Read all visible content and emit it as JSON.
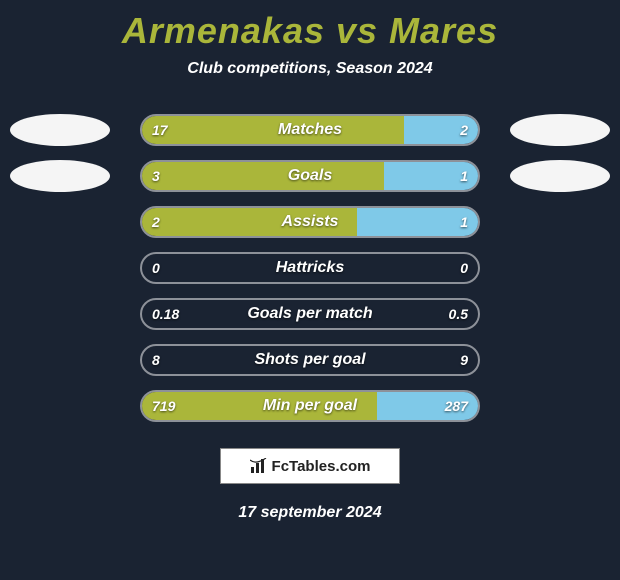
{
  "background_color": "#1a2332",
  "title": "Armenakas vs Mares",
  "title_color": "#aab63a",
  "title_fontsize": 36,
  "subtitle": "Club competitions, Season 2024",
  "subtitle_fontsize": 16,
  "bar": {
    "track_border_color": "rgba(255,255,255,0.5)",
    "left_color": "#aab63a",
    "right_color": "#7fc9e8",
    "label_fontsize": 16
  },
  "avatar": {
    "bg": "#f5f5f5",
    "show_rows": [
      0,
      1
    ]
  },
  "rows": [
    {
      "label": "Matches",
      "left": "17",
      "right": "2",
      "left_pct": 78,
      "right_pct": 22
    },
    {
      "label": "Goals",
      "left": "3",
      "right": "1",
      "left_pct": 72,
      "right_pct": 28
    },
    {
      "label": "Assists",
      "left": "2",
      "right": "1",
      "left_pct": 64,
      "right_pct": 36
    },
    {
      "label": "Hattricks",
      "left": "0",
      "right": "0",
      "left_pct": 0,
      "right_pct": 0
    },
    {
      "label": "Goals per match",
      "left": "0.18",
      "right": "0.5",
      "left_pct": 0,
      "right_pct": 0
    },
    {
      "label": "Shots per goal",
      "left": "8",
      "right": "9",
      "left_pct": 0,
      "right_pct": 0
    },
    {
      "label": "Min per goal",
      "left": "719",
      "right": "287",
      "left_pct": 70,
      "right_pct": 30
    }
  ],
  "footer": {
    "brand": "FcTables.com",
    "icon_name": "bar-chart-icon"
  },
  "date": "17 september 2024"
}
